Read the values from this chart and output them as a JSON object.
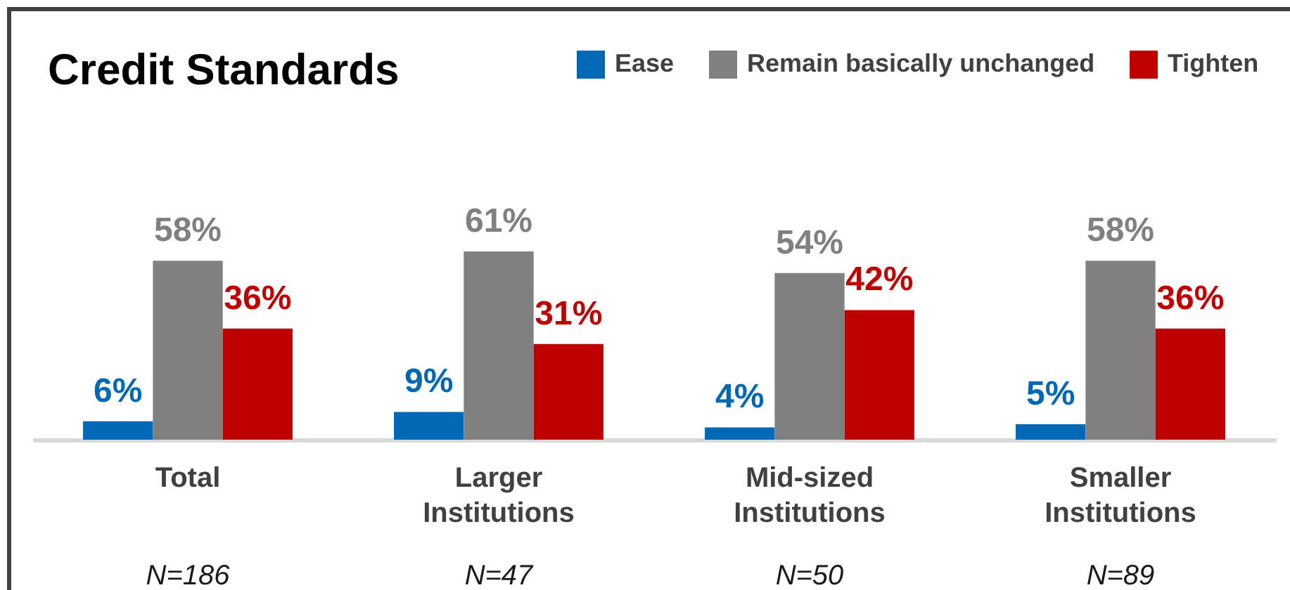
{
  "chart_data": {
    "type": "bar",
    "title": "Credit Standards",
    "categories": [
      "Total",
      "Larger Institutions",
      "Mid-sized Institutions",
      "Smaller Institutions"
    ],
    "series": [
      {
        "name": "Ease",
        "color": "#0068b5",
        "values": [
          6,
          9,
          4,
          5
        ],
        "value_labels": [
          "6%",
          "9%",
          "4%",
          "5%"
        ]
      },
      {
        "name": "Remain basically unchanged",
        "color": "#808080",
        "values": [
          58,
          61,
          54,
          58
        ],
        "value_labels": [
          "58%",
          "61%",
          "54%",
          "58%"
        ]
      },
      {
        "name": "Tighten",
        "color": "#c00000",
        "values": [
          36,
          31,
          42,
          36
        ],
        "value_labels": [
          "36%",
          "31%",
          "42%",
          "36%"
        ]
      }
    ],
    "legend": "top right",
    "annotations": [
      "N=186",
      "N=47",
      "N=50",
      "N=89"
    ]
  }
}
